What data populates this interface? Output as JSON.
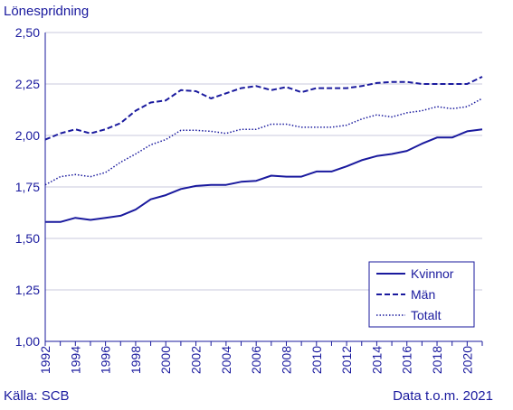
{
  "chart_data": {
    "type": "line",
    "ylabel": "Lönespridning",
    "source": "Källa: SCB",
    "note": "Data t.o.m. 2021",
    "ylim": [
      1.0,
      2.5
    ],
    "y_ticks": [
      "1,00",
      "1,25",
      "1,50",
      "1,75",
      "2,00",
      "2,25",
      "2,50"
    ],
    "x_range": [
      1992,
      2021
    ],
    "x_ticks": [
      "1992",
      "1994",
      "1996",
      "1998",
      "2000",
      "2002",
      "2004",
      "2006",
      "2008",
      "2010",
      "2012",
      "2014",
      "2016",
      "2018",
      "2020"
    ],
    "grid": "horizontal",
    "legend_position": "bottom-right",
    "colors": {
      "line": "#1a1a9e",
      "grid": "#c8c8dc"
    },
    "x": [
      1992,
      1993,
      1994,
      1995,
      1996,
      1997,
      1998,
      1999,
      2000,
      2001,
      2002,
      2003,
      2004,
      2005,
      2006,
      2007,
      2008,
      2009,
      2010,
      2011,
      2012,
      2013,
      2014,
      2015,
      2016,
      2017,
      2018,
      2019,
      2020,
      2021
    ],
    "series": [
      {
        "name": "Kvinnor",
        "style": "solid",
        "values": [
          1.58,
          1.58,
          1.6,
          1.59,
          1.6,
          1.61,
          1.64,
          1.69,
          1.71,
          1.74,
          1.755,
          1.76,
          1.76,
          1.775,
          1.78,
          1.805,
          1.8,
          1.8,
          1.825,
          1.825,
          1.85,
          1.88,
          1.9,
          1.91,
          1.925,
          1.96,
          1.99,
          1.99,
          2.02,
          2.03
        ]
      },
      {
        "name": "Män",
        "style": "dashed",
        "values": [
          1.98,
          2.01,
          2.03,
          2.01,
          2.03,
          2.06,
          2.12,
          2.16,
          2.17,
          2.22,
          2.215,
          2.18,
          2.205,
          2.23,
          2.24,
          2.22,
          2.235,
          2.21,
          2.23,
          2.23,
          2.23,
          2.24,
          2.255,
          2.26,
          2.26,
          2.25,
          2.25,
          2.25,
          2.25,
          2.285
        ]
      },
      {
        "name": "Totalt",
        "style": "dotted",
        "values": [
          1.76,
          1.8,
          1.81,
          1.8,
          1.82,
          1.87,
          1.91,
          1.955,
          1.98,
          2.025,
          2.025,
          2.02,
          2.01,
          2.03,
          2.03,
          2.055,
          2.055,
          2.04,
          2.04,
          2.04,
          2.05,
          2.08,
          2.1,
          2.09,
          2.11,
          2.12,
          2.14,
          2.13,
          2.14,
          2.18
        ]
      }
    ]
  }
}
